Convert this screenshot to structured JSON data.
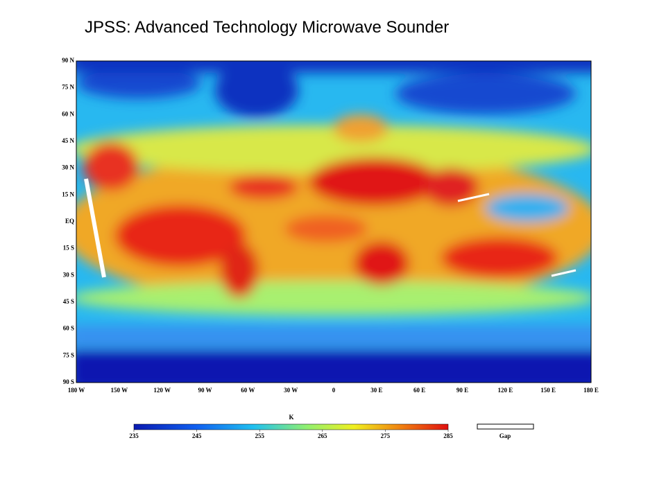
{
  "title": "JPSS:  Advanced Technology Microwave Sounder",
  "map": {
    "lat_labels": [
      "90 N",
      "75 N",
      "60 N",
      "45 N",
      "30 N",
      "15 N",
      "EQ",
      "15 S",
      "30 S",
      "45 S",
      "60 S",
      "75 S",
      "90 S"
    ],
    "lon_labels": [
      "180 W",
      "150 W",
      "120 W",
      "90 W",
      "60 W",
      "30 W",
      "0",
      "30 E",
      "60 E",
      "90 E",
      "120 E",
      "150 E",
      "180 E"
    ]
  },
  "colorbar": {
    "unit": "K",
    "ticks": [
      235,
      245,
      255,
      265,
      275,
      285
    ],
    "gap_label": "Gap"
  }
}
